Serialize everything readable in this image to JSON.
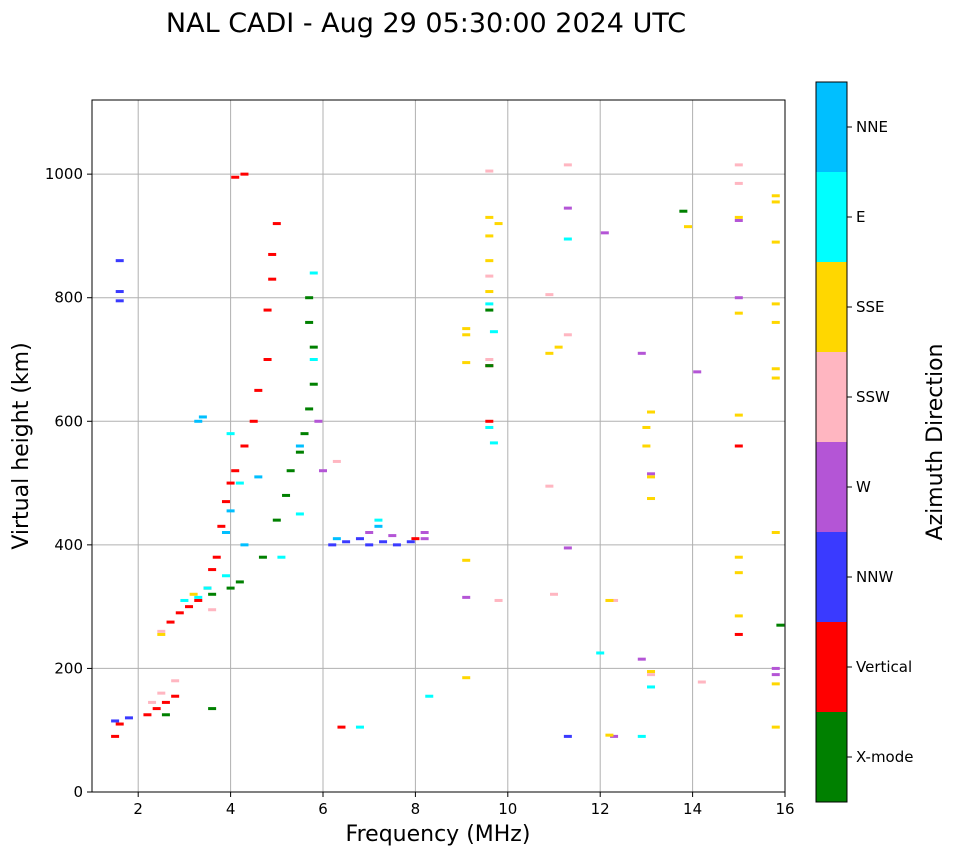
{
  "chart_data": {
    "type": "scatter",
    "title": "NAL CADI - Aug 29 05:30:00 2024 UTC",
    "xlabel": "Frequency (MHz)",
    "ylabel": "Virtual height (km)",
    "xlim": [
      1,
      16
    ],
    "ylim": [
      0,
      1120
    ],
    "xticks": [
      2,
      4,
      6,
      8,
      10,
      12,
      14,
      16
    ],
    "yticks": [
      0,
      200,
      400,
      600,
      800,
      1000
    ],
    "xtick_labels": [
      "2",
      "4",
      "6",
      "8",
      "10",
      "12",
      "14",
      "16"
    ],
    "ytick_labels": [
      "0",
      "200",
      "400",
      "600",
      "800",
      "1000"
    ],
    "grid": true,
    "colorbar": {
      "title": "Azimuth Direction",
      "categories": [
        {
          "name": "X-mode",
          "color": "#008000"
        },
        {
          "name": "Vertical",
          "color": "#ff0000"
        },
        {
          "name": "NNW",
          "color": "#3a3aff"
        },
        {
          "name": "W",
          "color": "#b455d6"
        },
        {
          "name": "SSW",
          "color": "#ffb6c1"
        },
        {
          "name": "SSE",
          "color": "#ffd700"
        },
        {
          "name": "E",
          "color": "#00ffff"
        },
        {
          "name": "NNE",
          "color": "#00bfff"
        }
      ]
    },
    "series": [
      {
        "name": "Vertical",
        "points": [
          [
            1.5,
            90
          ],
          [
            1.6,
            110
          ],
          [
            2.2,
            125
          ],
          [
            2.4,
            135
          ],
          [
            2.6,
            145
          ],
          [
            2.8,
            155
          ],
          [
            2.7,
            275
          ],
          [
            2.9,
            290
          ],
          [
            3.1,
            300
          ],
          [
            3.3,
            310
          ],
          [
            3.5,
            330
          ],
          [
            3.6,
            360
          ],
          [
            3.7,
            380
          ],
          [
            3.8,
            430
          ],
          [
            3.9,
            470
          ],
          [
            4.0,
            500
          ],
          [
            4.1,
            520
          ],
          [
            4.3,
            560
          ],
          [
            4.5,
            600
          ],
          [
            4.6,
            650
          ],
          [
            4.8,
            700
          ],
          [
            4.8,
            780
          ],
          [
            4.9,
            830
          ],
          [
            4.9,
            870
          ],
          [
            5.0,
            920
          ],
          [
            4.1,
            995
          ],
          [
            4.3,
            1000
          ],
          [
            6.4,
            105
          ],
          [
            8.0,
            410
          ],
          [
            15.0,
            255
          ],
          [
            15.0,
            560
          ],
          [
            9.6,
            690
          ],
          [
            9.6,
            600
          ]
        ]
      },
      {
        "name": "X-mode",
        "points": [
          [
            2.6,
            125
          ],
          [
            3.6,
            135
          ],
          [
            3.6,
            320
          ],
          [
            4.0,
            330
          ],
          [
            4.2,
            340
          ],
          [
            4.7,
            380
          ],
          [
            5.0,
            440
          ],
          [
            5.2,
            480
          ],
          [
            5.3,
            520
          ],
          [
            5.5,
            550
          ],
          [
            5.6,
            580
          ],
          [
            5.7,
            620
          ],
          [
            5.8,
            660
          ],
          [
            5.8,
            720
          ],
          [
            5.7,
            760
          ],
          [
            5.7,
            800
          ],
          [
            13.8,
            940
          ],
          [
            15.9,
            270
          ],
          [
            9.6,
            780
          ],
          [
            9.6,
            690
          ]
        ]
      },
      {
        "name": "NNW",
        "points": [
          [
            1.6,
            795
          ],
          [
            1.6,
            810
          ],
          [
            1.6,
            860
          ],
          [
            1.5,
            115
          ],
          [
            1.8,
            120
          ],
          [
            6.5,
            405
          ],
          [
            6.8,
            410
          ],
          [
            7.0,
            400
          ],
          [
            7.3,
            405
          ],
          [
            7.6,
            400
          ],
          [
            7.9,
            405
          ],
          [
            6.2,
            400
          ],
          [
            11.3,
            90
          ]
        ]
      },
      {
        "name": "W",
        "points": [
          [
            7.0,
            420
          ],
          [
            7.5,
            415
          ],
          [
            8.2,
            420
          ],
          [
            8.2,
            410
          ],
          [
            6.0,
            520
          ],
          [
            5.9,
            600
          ],
          [
            9.1,
            315
          ],
          [
            12.1,
            905
          ],
          [
            12.3,
            90
          ],
          [
            12.9,
            710
          ],
          [
            12.9,
            215
          ],
          [
            13.1,
            515
          ],
          [
            14.1,
            680
          ],
          [
            15.0,
            925
          ],
          [
            15.0,
            800
          ],
          [
            15.8,
            200
          ],
          [
            15.8,
            190
          ],
          [
            11.3,
            395
          ],
          [
            11.3,
            945
          ]
        ]
      },
      {
        "name": "SSW",
        "points": [
          [
            2.3,
            145
          ],
          [
            2.5,
            160
          ],
          [
            2.8,
            180
          ],
          [
            2.5,
            260
          ],
          [
            3.6,
            295
          ],
          [
            6.3,
            535
          ],
          [
            9.6,
            1005
          ],
          [
            9.6,
            835
          ],
          [
            9.6,
            700
          ],
          [
            9.8,
            310
          ],
          [
            10.9,
            495
          ],
          [
            10.9,
            805
          ],
          [
            11.3,
            740
          ],
          [
            11.3,
            1015
          ],
          [
            11.0,
            320
          ],
          [
            12.3,
            310
          ],
          [
            13.1,
            190
          ],
          [
            14.2,
            178
          ],
          [
            15.0,
            985
          ],
          [
            15.0,
            1015
          ]
        ]
      },
      {
        "name": "SSE",
        "points": [
          [
            2.5,
            255
          ],
          [
            3.2,
            320
          ],
          [
            9.1,
            740
          ],
          [
            9.1,
            750
          ],
          [
            9.1,
            695
          ],
          [
            9.1,
            375
          ],
          [
            9.1,
            185
          ],
          [
            9.6,
            930
          ],
          [
            9.6,
            900
          ],
          [
            9.6,
            860
          ],
          [
            9.6,
            810
          ],
          [
            9.8,
            920
          ],
          [
            10.9,
            710
          ],
          [
            11.1,
            720
          ],
          [
            12.2,
            310
          ],
          [
            12.2,
            92
          ],
          [
            13.0,
            560
          ],
          [
            13.0,
            590
          ],
          [
            13.1,
            615
          ],
          [
            13.1,
            510
          ],
          [
            13.1,
            475
          ],
          [
            13.1,
            195
          ],
          [
            13.9,
            915
          ],
          [
            15.0,
            775
          ],
          [
            15.0,
            930
          ],
          [
            15.0,
            610
          ],
          [
            15.0,
            380
          ],
          [
            15.0,
            355
          ],
          [
            15.0,
            285
          ],
          [
            15.8,
            965
          ],
          [
            15.8,
            955
          ],
          [
            15.8,
            890
          ],
          [
            15.8,
            790
          ],
          [
            15.8,
            760
          ],
          [
            15.8,
            685
          ],
          [
            15.8,
            670
          ],
          [
            15.8,
            420
          ],
          [
            15.8,
            175
          ],
          [
            15.8,
            105
          ]
        ]
      },
      {
        "name": "E",
        "points": [
          [
            3.0,
            310
          ],
          [
            3.3,
            315
          ],
          [
            3.5,
            330
          ],
          [
            3.9,
            350
          ],
          [
            4.0,
            580
          ],
          [
            4.2,
            500
          ],
          [
            5.1,
            380
          ],
          [
            5.5,
            450
          ],
          [
            5.8,
            700
          ],
          [
            5.8,
            840
          ],
          [
            8.3,
            155
          ],
          [
            9.6,
            790
          ],
          [
            9.6,
            590
          ],
          [
            9.7,
            565
          ],
          [
            9.7,
            745
          ],
          [
            11.3,
            895
          ],
          [
            12.0,
            225
          ],
          [
            12.9,
            90
          ],
          [
            13.1,
            170
          ],
          [
            6.8,
            105
          ],
          [
            7.2,
            440
          ]
        ]
      },
      {
        "name": "NNE",
        "points": [
          [
            3.4,
            607
          ],
          [
            3.3,
            600
          ],
          [
            3.9,
            420
          ],
          [
            4.0,
            455
          ],
          [
            4.3,
            400
          ],
          [
            4.6,
            510
          ],
          [
            5.5,
            560
          ],
          [
            6.3,
            410
          ],
          [
            7.2,
            430
          ]
        ]
      }
    ]
  }
}
